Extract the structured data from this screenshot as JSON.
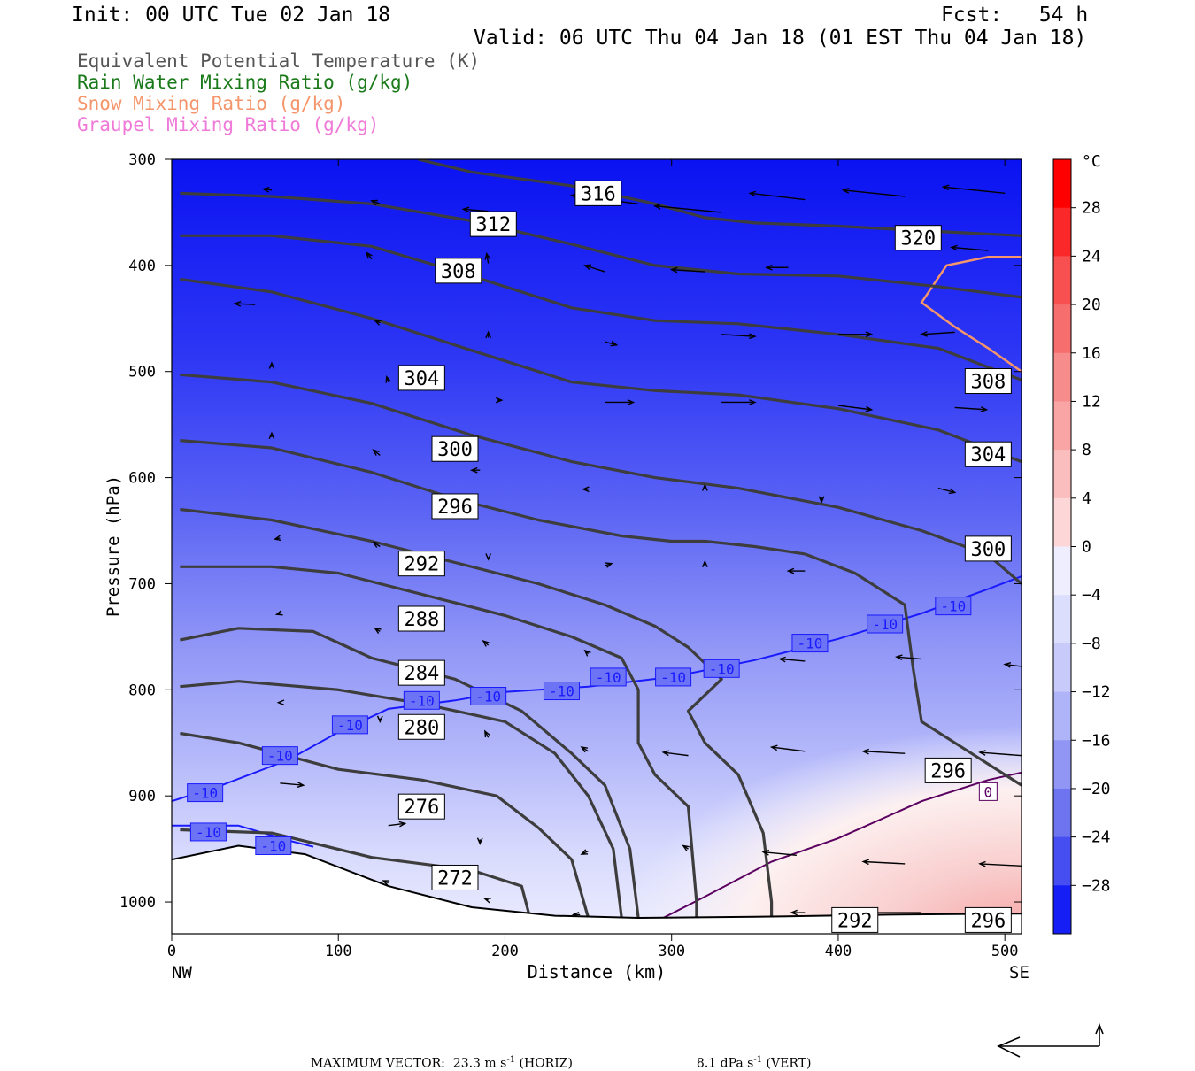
{
  "header": {
    "init": "Init: 00 UTC Tue 02 Jan 18",
    "fcst": "Fcst:   54 h",
    "valid": "Valid: 06 UTC Thu 04 Jan 18 (01 EST Thu 04 Jan 18)",
    "legend": [
      {
        "label": "Equivalent Potential Temperature (K)",
        "color": "#555555"
      },
      {
        "label": "Rain Water Mixing Ratio (g/kg)",
        "color": "#1a7a1a"
      },
      {
        "label": "Snow Mixing Ratio (g/kg)",
        "color": "#f4956b"
      },
      {
        "label": "Graupel Mixing Ratio (g/kg)",
        "color": "#f07ad8"
      }
    ]
  },
  "footer": {
    "max_vector": "MAXIMUM VECTOR:  23.3 m s",
    "horiz": " (HORIZ)",
    "vert_val": "8.1 dPa s",
    "vert": " (VERT)",
    "sup": "-1"
  },
  "chart_data": {
    "type": "heatmap",
    "xlabel": "Distance (km)",
    "ylabel": "Pressure (hPa)",
    "xlim": [
      0,
      510
    ],
    "ylim": [
      1030,
      300
    ],
    "x_ticks": [
      0,
      100,
      200,
      300,
      400,
      500
    ],
    "y_ticks": [
      300,
      400,
      500,
      600,
      700,
      800,
      900,
      1000
    ],
    "x_end_labels": {
      "left": "NW",
      "right": "SE"
    },
    "colorbar": {
      "unit": "°C",
      "ticks": [
        28,
        24,
        20,
        16,
        12,
        8,
        4,
        0,
        -4,
        -8,
        -12,
        -16,
        -20,
        -24,
        -28
      ]
    },
    "theta_e_contours": [
      {
        "label": "316",
        "points": [
          [
            148,
            300
          ],
          [
            180,
            312
          ],
          [
            240,
            325
          ],
          [
            290,
            342
          ],
          [
            320,
            355
          ],
          [
            350,
            360
          ],
          [
            400,
            363
          ],
          [
            460,
            368
          ],
          [
            510,
            372
          ]
        ]
      },
      {
        "label": "312",
        "points": [
          [
            5,
            332
          ],
          [
            60,
            335
          ],
          [
            120,
            342
          ],
          [
            180,
            358
          ],
          [
            240,
            380
          ],
          [
            290,
            400
          ],
          [
            340,
            408
          ],
          [
            400,
            410
          ],
          [
            460,
            420
          ],
          [
            510,
            430
          ]
        ]
      },
      {
        "label": "308",
        "points": [
          [
            5,
            372
          ],
          [
            60,
            372
          ],
          [
            120,
            382
          ],
          [
            180,
            410
          ],
          [
            240,
            440
          ],
          [
            290,
            452
          ],
          [
            340,
            455
          ],
          [
            400,
            465
          ],
          [
            460,
            478
          ],
          [
            510,
            508
          ]
        ]
      },
      {
        "label": "304",
        "points": [
          [
            5,
            413
          ],
          [
            60,
            425
          ],
          [
            120,
            450
          ],
          [
            180,
            480
          ],
          [
            240,
            510
          ],
          [
            290,
            518
          ],
          [
            340,
            522
          ],
          [
            400,
            535
          ],
          [
            460,
            555
          ],
          [
            510,
            585
          ]
        ]
      },
      {
        "label": "300",
        "points": [
          [
            5,
            503
          ],
          [
            60,
            510
          ],
          [
            120,
            530
          ],
          [
            180,
            560
          ],
          [
            240,
            585
          ],
          [
            290,
            600
          ],
          [
            340,
            610
          ],
          [
            400,
            628
          ],
          [
            450,
            650
          ],
          [
            490,
            673
          ],
          [
            510,
            700
          ]
        ]
      },
      {
        "label": "296",
        "points": [
          [
            5,
            565
          ],
          [
            60,
            572
          ],
          [
            120,
            595
          ],
          [
            170,
            620
          ],
          [
            220,
            640
          ],
          [
            270,
            655
          ],
          [
            300,
            660
          ],
          [
            320,
            660
          ],
          [
            350,
            665
          ],
          [
            380,
            672
          ],
          [
            410,
            690
          ],
          [
            440,
            720
          ],
          [
            445,
            780
          ],
          [
            450,
            830
          ],
          [
            480,
            860
          ],
          [
            510,
            890
          ]
        ]
      },
      {
        "label": "292",
        "points": [
          [
            5,
            630
          ],
          [
            60,
            640
          ],
          [
            120,
            660
          ],
          [
            170,
            680
          ],
          [
            220,
            700
          ],
          [
            260,
            720
          ],
          [
            290,
            740
          ],
          [
            310,
            760
          ],
          [
            330,
            790
          ],
          [
            310,
            820
          ],
          [
            320,
            850
          ],
          [
            340,
            880
          ],
          [
            355,
            935
          ],
          [
            360,
            1000
          ],
          [
            360,
            1015
          ]
        ]
      },
      {
        "label": "288",
        "points": [
          [
            5,
            684
          ],
          [
            60,
            684
          ],
          [
            100,
            690
          ],
          [
            150,
            710
          ],
          [
            200,
            730
          ],
          [
            240,
            750
          ],
          [
            270,
            770
          ],
          [
            280,
            800
          ],
          [
            280,
            850
          ],
          [
            290,
            880
          ],
          [
            310,
            910
          ],
          [
            315,
            1000
          ],
          [
            315,
            1015
          ]
        ]
      },
      {
        "label": "284",
        "points": [
          [
            5,
            753
          ],
          [
            40,
            742
          ],
          [
            85,
            745
          ],
          [
            120,
            770
          ],
          [
            170,
            790
          ],
          [
            210,
            820
          ],
          [
            240,
            860
          ],
          [
            260,
            890
          ],
          [
            275,
            950
          ],
          [
            280,
            1015
          ]
        ]
      },
      {
        "label": "280",
        "points": [
          [
            5,
            797
          ],
          [
            40,
            792
          ],
          [
            100,
            800
          ],
          [
            150,
            813
          ],
          [
            200,
            830
          ],
          [
            230,
            860
          ],
          [
            250,
            900
          ],
          [
            265,
            950
          ],
          [
            270,
            1015
          ]
        ]
      },
      {
        "label": "276",
        "points": [
          [
            5,
            841
          ],
          [
            40,
            850
          ],
          [
            100,
            875
          ],
          [
            150,
            885
          ],
          [
            195,
            900
          ],
          [
            220,
            930
          ],
          [
            240,
            960
          ],
          [
            250,
            1015
          ]
        ]
      },
      {
        "label": "272",
        "points": [
          [
            5,
            932
          ],
          [
            60,
            935
          ],
          [
            120,
            958
          ],
          [
            180,
            970
          ],
          [
            210,
            985
          ],
          [
            215,
            1015
          ]
        ]
      }
    ],
    "contour_labels": [
      {
        "text": "316",
        "x": 256,
        "y": 332
      },
      {
        "text": "312",
        "x": 193,
        "y": 361
      },
      {
        "text": "308",
        "x": 172,
        "y": 405
      },
      {
        "text": "320",
        "x": 448,
        "y": 374
      },
      {
        "text": "304",
        "x": 150,
        "y": 506
      },
      {
        "text": "308",
        "x": 490,
        "y": 509
      },
      {
        "text": "300",
        "x": 170,
        "y": 573
      },
      {
        "text": "304",
        "x": 490,
        "y": 578
      },
      {
        "text": "296",
        "x": 170,
        "y": 627
      },
      {
        "text": "292",
        "x": 150,
        "y": 681
      },
      {
        "text": "300",
        "x": 490,
        "y": 667
      },
      {
        "text": "288",
        "x": 150,
        "y": 733
      },
      {
        "text": "284",
        "x": 150,
        "y": 784
      },
      {
        "text": "280",
        "x": 150,
        "y": 835
      },
      {
        "text": "296",
        "x": 466,
        "y": 876
      },
      {
        "text": "276",
        "x": 150,
        "y": 910
      },
      {
        "text": "272",
        "x": 170,
        "y": 977
      },
      {
        "text": "292",
        "x": 410,
        "y": 1017
      },
      {
        "text": "296",
        "x": 490,
        "y": 1017
      }
    ],
    "isotherms": [
      {
        "label": "-10",
        "color": "#1a1aff",
        "points": [
          [
            0,
            905
          ],
          [
            30,
            890
          ],
          [
            70,
            866
          ],
          [
            100,
            840
          ],
          [
            130,
            818
          ],
          [
            170,
            810
          ],
          [
            200,
            802
          ],
          [
            250,
            797
          ],
          [
            300,
            788
          ],
          [
            350,
            772
          ],
          [
            400,
            752
          ],
          [
            450,
            728
          ],
          [
            490,
            705
          ],
          [
            510,
            693
          ]
        ],
        "labels": [
          [
            20,
            897
          ],
          [
            65,
            862
          ],
          [
            107,
            833
          ],
          [
            150,
            810
          ],
          [
            190,
            806
          ],
          [
            234,
            801
          ],
          [
            262,
            788
          ],
          [
            301,
            788
          ],
          [
            330,
            780
          ],
          [
            383,
            756
          ],
          [
            428,
            738
          ],
          [
            469,
            721
          ]
        ]
      },
      {
        "label": "-10",
        "color": "#1a1aff",
        "points": [
          [
            0,
            928
          ],
          [
            40,
            928
          ],
          [
            70,
            942
          ],
          [
            85,
            948
          ]
        ],
        "labels": [
          [
            22,
            934
          ],
          [
            61,
            947
          ]
        ]
      },
      {
        "label": "0",
        "color": "#5a0060",
        "points": [
          [
            295,
            1015
          ],
          [
            320,
            995
          ],
          [
            360,
            962
          ],
          [
            400,
            940
          ],
          [
            450,
            905
          ],
          [
            490,
            885
          ],
          [
            510,
            878
          ]
        ],
        "labels": [
          [
            490,
            896
          ]
        ]
      }
    ],
    "snow_contour": {
      "color": "#f4956b",
      "points": [
        [
          510,
          392
        ],
        [
          490,
          392
        ],
        [
          465,
          400
        ],
        [
          450,
          435
        ],
        [
          470,
          458
        ],
        [
          490,
          478
        ],
        [
          510,
          500
        ]
      ]
    },
    "ground": [
      [
        0,
        960
      ],
      [
        40,
        947
      ],
      [
        80,
        955
      ],
      [
        130,
        985
      ],
      [
        180,
        1005
      ],
      [
        230,
        1013
      ],
      [
        280,
        1015
      ],
      [
        350,
        1014
      ],
      [
        430,
        1012
      ],
      [
        510,
        1011
      ]
    ],
    "wind_vectors": [
      [
        60,
        329,
        -5,
        -1
      ],
      [
        125,
        342,
        -5,
        -3
      ],
      [
        190,
        349,
        -15,
        -2
      ],
      [
        280,
        342,
        -40,
        -8
      ],
      [
        330,
        350,
        -40,
        -6
      ],
      [
        380,
        338,
        -33,
        -6
      ],
      [
        440,
        335,
        -37,
        -6
      ],
      [
        500,
        332,
        -37,
        -6
      ],
      [
        120,
        394,
        -3,
        -6
      ],
      [
        190,
        398,
        -1,
        -9
      ],
      [
        260,
        406,
        -12,
        -6
      ],
      [
        320,
        406,
        -20,
        -2
      ],
      [
        370,
        402,
        -13,
        0
      ],
      [
        450,
        383,
        -15,
        -3
      ],
      [
        490,
        386,
        -22,
        -3
      ],
      [
        50,
        437,
        -12,
        -1
      ],
      [
        125,
        454,
        -3,
        -2
      ],
      [
        190,
        468,
        0,
        -5
      ],
      [
        260,
        472,
        7,
        3
      ],
      [
        330,
        465,
        20,
        2
      ],
      [
        400,
        465,
        20,
        0
      ],
      [
        470,
        463,
        -20,
        2
      ],
      [
        60,
        496,
        0,
        -4
      ],
      [
        130,
        510,
        -1,
        -5
      ],
      [
        195,
        527,
        3,
        0
      ],
      [
        260,
        529,
        17,
        0
      ],
      [
        330,
        529,
        20,
        0
      ],
      [
        400,
        532,
        20,
        4
      ],
      [
        470,
        534,
        19,
        2
      ],
      [
        60,
        562,
        0,
        -4
      ],
      [
        125,
        579,
        -4,
        -5
      ],
      [
        185,
        593,
        -5,
        0
      ],
      [
        250,
        611,
        -3,
        0
      ],
      [
        320,
        610,
        0,
        -3
      ],
      [
        390,
        618,
        0,
        5
      ],
      [
        460,
        610,
        10,
        4
      ],
      [
        0,
        650,
        -5,
        2
      ],
      [
        65,
        657,
        -3,
        1
      ],
      [
        125,
        665,
        -4,
        -4
      ],
      [
        190,
        675,
        0,
        2
      ],
      [
        260,
        683,
        4,
        -2
      ],
      [
        320,
        683,
        0,
        -4
      ],
      [
        380,
        688,
        -10,
        0
      ],
      [
        65,
        728,
        -2,
        1
      ],
      [
        125,
        745,
        -3,
        -3
      ],
      [
        190,
        758,
        -3,
        -4
      ],
      [
        250,
        766,
        -2,
        -3
      ],
      [
        380,
        773,
        -15,
        -2
      ],
      [
        450,
        771,
        -15,
        -2
      ],
      [
        510,
        778,
        -10,
        -2
      ],
      [
        65,
        812,
        -1,
        0
      ],
      [
        125,
        827,
        0,
        3
      ],
      [
        190,
        845,
        -2,
        -6
      ],
      [
        250,
        858,
        -4,
        -4
      ],
      [
        310,
        862,
        -15,
        -3
      ],
      [
        380,
        858,
        -20,
        -4
      ],
      [
        440,
        860,
        -25,
        -2
      ],
      [
        510,
        862,
        -25,
        -3
      ],
      [
        0,
        892,
        -12,
        -1
      ],
      [
        65,
        888,
        14,
        2
      ],
      [
        130,
        928,
        10,
        -2
      ],
      [
        185,
        941,
        0,
        4
      ],
      [
        250,
        952,
        -4,
        3
      ],
      [
        310,
        950,
        -3,
        -3
      ],
      [
        375,
        956,
        -20,
        -3
      ],
      [
        440,
        964,
        -25,
        -2
      ],
      [
        510,
        966,
        -25,
        -2
      ],
      [
        130,
        982,
        -3,
        -2
      ],
      [
        190,
        998,
        -2,
        -1
      ],
      [
        245,
        1012,
        -4,
        0
      ],
      [
        380,
        1010,
        -8,
        0
      ],
      [
        450,
        1010,
        -30,
        0
      ]
    ]
  }
}
